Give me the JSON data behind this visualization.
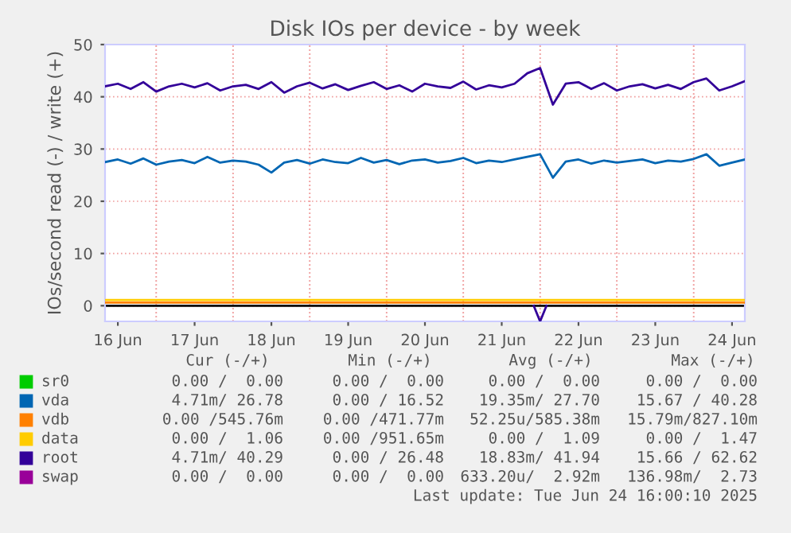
{
  "chart_data": {
    "type": "line",
    "title": "Disk IOs per device - by week",
    "ylabel": "IOs/second read (-) / write (+)",
    "x": [
      "2025-06-16T08:00",
      "2025-06-16T12:00",
      "2025-06-16T16:00",
      "2025-06-16T20:00",
      "2025-06-17T00:00",
      "2025-06-17T04:00",
      "2025-06-17T08:00",
      "2025-06-17T12:00",
      "2025-06-17T16:00",
      "2025-06-17T20:00",
      "2025-06-18T00:00",
      "2025-06-18T04:00",
      "2025-06-18T08:00",
      "2025-06-18T12:00",
      "2025-06-18T16:00",
      "2025-06-18T20:00",
      "2025-06-19T00:00",
      "2025-06-19T04:00",
      "2025-06-19T08:00",
      "2025-06-19T12:00",
      "2025-06-19T16:00",
      "2025-06-19T20:00",
      "2025-06-20T00:00",
      "2025-06-20T04:00",
      "2025-06-20T08:00",
      "2025-06-20T12:00",
      "2025-06-20T16:00",
      "2025-06-20T20:00",
      "2025-06-21T00:00",
      "2025-06-21T04:00",
      "2025-06-21T08:00",
      "2025-06-21T12:00",
      "2025-06-21T16:00",
      "2025-06-21T20:00",
      "2025-06-22T00:00",
      "2025-06-22T04:00",
      "2025-06-22T08:00",
      "2025-06-22T12:00",
      "2025-06-22T16:00",
      "2025-06-22T20:00",
      "2025-06-23T00:00",
      "2025-06-23T04:00",
      "2025-06-23T08:00",
      "2025-06-23T12:00",
      "2025-06-23T16:00",
      "2025-06-23T20:00",
      "2025-06-24T00:00",
      "2025-06-24T04:00",
      "2025-06-24T08:00",
      "2025-06-24T12:00",
      "2025-06-24T16:00"
    ],
    "series": [
      {
        "name": "sr0",
        "color": "#00cc00",
        "values": [
          null,
          null,
          null,
          null,
          null,
          null,
          null,
          null,
          null,
          null,
          null,
          null,
          null,
          null,
          null,
          null,
          null,
          null,
          null,
          null,
          null,
          null,
          null,
          null,
          null,
          null,
          null,
          null,
          null,
          null,
          null,
          null,
          null,
          null,
          null,
          null,
          null,
          null,
          null,
          null,
          null,
          null,
          null,
          null,
          null,
          null,
          null,
          null,
          null,
          null,
          null
        ]
      },
      {
        "name": "vda",
        "color": "#0066b3",
        "values": [
          27.5,
          28,
          27.2,
          28.2,
          27,
          27.6,
          27.9,
          27.3,
          28.5,
          27.4,
          27.8,
          27.6,
          27,
          25.5,
          27.4,
          27.9,
          27.2,
          28,
          27.5,
          27.3,
          28.3,
          27.4,
          27.9,
          27.1,
          27.8,
          28,
          27.4,
          27.7,
          28.3,
          27.3,
          27.8,
          27.5,
          28,
          28.5,
          29,
          24.5,
          27.6,
          28,
          27.2,
          27.8,
          27.4,
          27.7,
          28,
          27.3,
          27.8,
          27.6,
          28.1,
          29,
          26.8,
          27.4,
          28
        ]
      },
      {
        "name": "vdb",
        "color": "#ff8000",
        "x": [
          "2025-06-16T08:00",
          "2025-06-24T16:00"
        ],
        "values": [
          0.6,
          0.6
        ]
      },
      {
        "name": "data",
        "color": "#ffcc00",
        "x": [
          "2025-06-16T08:00",
          "2025-06-24T16:00"
        ],
        "values": [
          1.1,
          1.1
        ]
      },
      {
        "name": "root",
        "color": "#330099",
        "values": [
          42,
          42.5,
          41.5,
          42.8,
          41,
          42,
          42.5,
          41.8,
          42.6,
          41.2,
          42,
          42.3,
          41.5,
          42.8,
          40.8,
          42,
          42.7,
          41.6,
          42.4,
          41.3,
          42.1,
          42.8,
          41.5,
          42.2,
          41,
          42.5,
          42,
          41.7,
          42.9,
          41.4,
          42.2,
          41.8,
          42.5,
          44.5,
          45.5,
          38.5,
          42.5,
          42.8,
          41.5,
          42.6,
          41.2,
          42,
          42.4,
          41.6,
          42.3,
          41.5,
          42.8,
          43.5,
          41.2,
          42,
          43
        ]
      },
      {
        "name": "swap",
        "color": "#990099",
        "values": [
          null,
          null,
          null,
          null,
          null,
          null,
          null,
          null,
          null,
          null,
          null,
          null,
          null,
          null,
          null,
          null,
          null,
          null,
          null,
          null,
          null,
          null,
          null,
          null,
          null,
          null,
          null,
          null,
          null,
          null,
          null,
          null,
          null,
          null,
          null,
          null,
          null,
          null,
          null,
          null,
          null,
          null,
          null,
          null,
          null,
          null,
          null,
          null,
          null,
          null,
          null
        ]
      },
      {
        "color": "#330099",
        "x": [
          "2025-06-21T22:00",
          "2025-06-22T00:00",
          "2025-06-22T02:00"
        ],
        "values": [
          0,
          -3,
          0
        ]
      }
    ],
    "xlim": [
      "2025-06-16T08:00",
      "2025-06-24T16:00"
    ],
    "xticks": [
      {
        "value": "2025-06-16T12:00",
        "label": "16 Jun"
      },
      {
        "value": "2025-06-17T12:00",
        "label": "17 Jun"
      },
      {
        "value": "2025-06-18T12:00",
        "label": "18 Jun"
      },
      {
        "value": "2025-06-19T12:00",
        "label": "19 Jun"
      },
      {
        "value": "2025-06-20T12:00",
        "label": "20 Jun"
      },
      {
        "value": "2025-06-21T12:00",
        "label": "21 Jun"
      },
      {
        "value": "2025-06-22T12:00",
        "label": "22 Jun"
      },
      {
        "value": "2025-06-23T12:00",
        "label": "23 Jun"
      },
      {
        "value": "2025-06-24T12:00",
        "label": "24 Jun"
      }
    ],
    "ylim": [
      -3,
      50
    ],
    "yticks": [
      0,
      10,
      20,
      30,
      40,
      50
    ],
    "ref_lines": [
      {
        "axis": "y",
        "value": 0,
        "color": "#000000"
      }
    ],
    "grid": true,
    "legend": "bottom left",
    "annotations": [
      "Cur (-/+)",
      "Min (-/+)",
      "Avg (-/+)",
      "Max (-/+)",
      "0.00 /  0.00",
      "0.00 /  0.00",
      "0.00 /  0.00",
      "0.00 /  0.00",
      "4.71m/ 26.78",
      "0.00 / 16.52",
      "19.35m/ 27.70",
      "15.67 / 40.28",
      "0.00 /545.76m",
      "0.00 /471.77m",
      "52.25u/585.38m",
      "15.79m/827.10m",
      "0.00 /  1.06",
      "0.00 /951.65m",
      "0.00 /  1.09",
      "0.00 /  1.47",
      "4.71m/ 40.29",
      "0.00 / 26.48",
      "18.83m/ 41.94",
      "15.66 / 62.62",
      "0.00 /  0.00",
      "0.00 /  0.00",
      "633.20u/  2.92m",
      "136.98m/  2.73",
      "Last update: Tue Jun 24 16:00:10 2025"
    ]
  }
}
